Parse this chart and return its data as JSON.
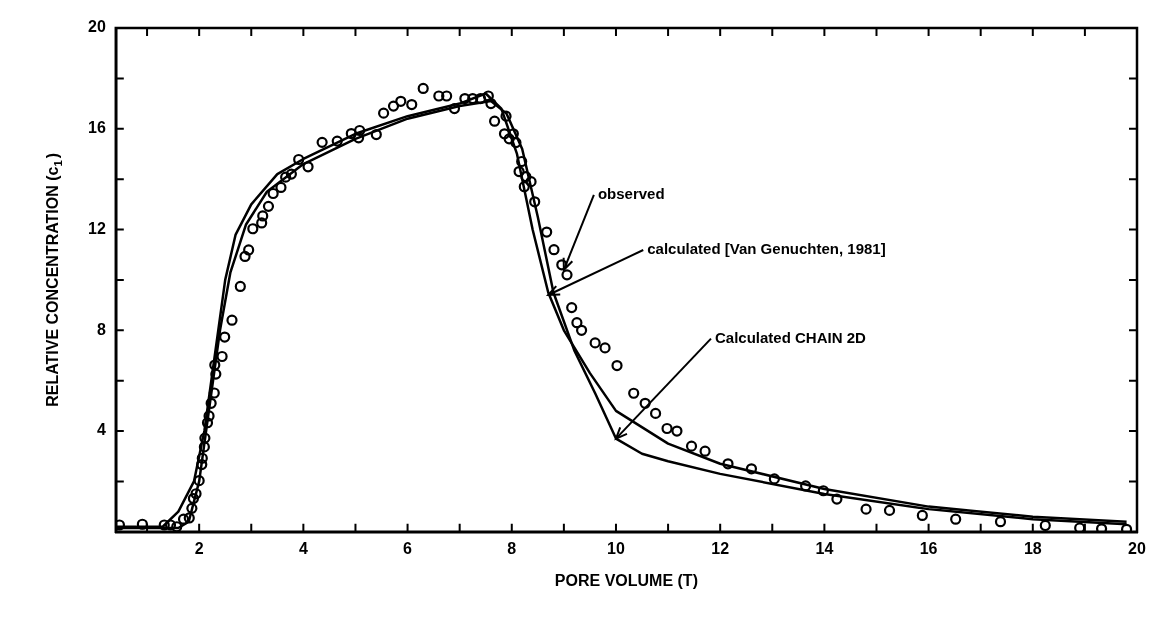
{
  "chart_data": {
    "type": "line",
    "xlabel": "PORE VOLUME (T)",
    "ylabel": "RELATIVE CONCENTRATION (c$_{1}$)",
    "xlim": [
      0.4,
      20
    ],
    "ylim": [
      0,
      20
    ],
    "xticks": [
      {
        "value": 1,
        "label": null
      },
      2,
      {
        "value": 3,
        "label": null
      },
      4,
      {
        "value": 5,
        "label": null
      },
      6,
      {
        "value": 7,
        "label": null
      },
      8,
      {
        "value": 9,
        "label": null
      },
      10,
      {
        "value": 11,
        "label": null
      },
      12,
      {
        "value": 13,
        "label": null
      },
      14,
      {
        "value": 15,
        "label": null
      },
      16,
      {
        "value": 17,
        "label": null
      },
      18,
      {
        "value": 19,
        "label": null
      },
      20
    ],
    "yticks": [
      {
        "value": 2,
        "label": null
      },
      4,
      {
        "value": 6,
        "label": null
      },
      8,
      {
        "value": 10,
        "label": null
      },
      12,
      {
        "value": 14,
        "label": null
      },
      16,
      {
        "value": 18,
        "label": null
      },
      20
    ],
    "grid": false,
    "legend": false,
    "annotations": [
      {
        "text": "observed",
        "x": 9.0,
        "y": 10.4
      },
      {
        "text": "calculated [Van Genuchten, 1981]",
        "x": 8.7,
        "y": 9.4
      },
      {
        "text": "Calculated CHAIN 2D",
        "x": 10.0,
        "y": 3.7
      }
    ],
    "series": [
      {
        "type": "scatter",
        "marker": "circle",
        "color": "#000000",
        "x": [
          0.47,
          0.91,
          1.33,
          1.45,
          1.57,
          1.7,
          1.81,
          1.86,
          1.89,
          1.94,
          2.0,
          2.05,
          2.06,
          2.1,
          2.11,
          2.16,
          2.19,
          2.23,
          2.29,
          2.32,
          2.3,
          2.44,
          2.49,
          2.63,
          2.79,
          2.88,
          2.95,
          3.03,
          3.2,
          3.22,
          3.33,
          3.42,
          3.57,
          3.66,
          3.77,
          3.91,
          4.09,
          4.36,
          4.65,
          4.92,
          5.06,
          5.08,
          5.4,
          5.54,
          5.73,
          5.87,
          6.08,
          6.3,
          6.6,
          6.75,
          6.9,
          7.1,
          7.25,
          7.4,
          7.55,
          7.6,
          7.67,
          7.89,
          7.86,
          7.95,
          8.08,
          8.03,
          8.19,
          8.14,
          8.27,
          8.24,
          8.37,
          8.44,
          8.67,
          8.81,
          8.96,
          9.06,
          9.15,
          9.25,
          9.34,
          9.6,
          9.79,
          10.02,
          10.34,
          10.56,
          10.76,
          10.98,
          11.17,
          11.45,
          11.71,
          12.15,
          12.6,
          13.04,
          13.64,
          13.98,
          14.24,
          14.8,
          15.25,
          15.88,
          16.52,
          17.38,
          18.24,
          18.9,
          19.32,
          19.8
        ],
        "values": [
          0.27,
          0.3,
          0.27,
          0.27,
          0.2,
          0.5,
          0.55,
          0.93,
          1.32,
          1.51,
          2.03,
          2.67,
          2.92,
          3.37,
          3.72,
          4.33,
          4.6,
          5.1,
          5.51,
          6.26,
          6.62,
          6.96,
          7.73,
          8.4,
          9.74,
          10.93,
          11.19,
          12.03,
          12.26,
          12.54,
          12.92,
          13.43,
          13.67,
          14.08,
          14.2,
          14.78,
          14.49,
          15.46,
          15.51,
          15.81,
          15.64,
          15.93,
          15.77,
          16.62,
          16.9,
          17.09,
          16.96,
          17.6,
          17.3,
          17.3,
          16.8,
          17.2,
          17.2,
          17.2,
          17.3,
          17.0,
          16.3,
          16.5,
          15.8,
          15.6,
          15.45,
          15.8,
          14.7,
          14.3,
          14.1,
          13.7,
          13.9,
          13.1,
          11.9,
          11.2,
          10.6,
          10.2,
          8.9,
          8.3,
          8.0,
          7.5,
          7.3,
          6.6,
          5.5,
          5.1,
          4.7,
          4.1,
          4.0,
          3.4,
          3.2,
          2.7,
          2.5,
          2.1,
          1.82,
          1.63,
          1.3,
          0.9,
          0.85,
          0.65,
          0.5,
          0.4,
          0.25,
          0.15,
          0.12,
          0.1
        ]
      },
      {
        "type": "line",
        "color": "#000000",
        "x": [
          0.4,
          1.3,
          1.6,
          1.9,
          2.1,
          2.3,
          2.5,
          2.7,
          3.0,
          3.5,
          4.0,
          5.0,
          6.0,
          7.0,
          7.5,
          7.8,
          8.1,
          8.4,
          8.7,
          9.0,
          9.5,
          10.0,
          11.0,
          12.0,
          14.0,
          16.0,
          18.0,
          19.8
        ],
        "values": [
          0.2,
          0.2,
          0.8,
          2.0,
          4.0,
          7.0,
          10.0,
          11.8,
          13.0,
          14.2,
          14.8,
          15.8,
          16.5,
          17.0,
          17.4,
          16.8,
          15.0,
          12.0,
          9.5,
          8.0,
          6.3,
          4.8,
          3.5,
          2.7,
          1.7,
          1.0,
          0.6,
          0.4
        ]
      },
      {
        "type": "line",
        "color": "#000000",
        "x": [
          0.4,
          1.6,
          1.8,
          2.0,
          2.2,
          2.4,
          2.6,
          2.9,
          3.3,
          4.0,
          5.0,
          6.0,
          7.0,
          7.6,
          7.9,
          8.2,
          8.5,
          8.8,
          9.2,
          9.6,
          10.0,
          10.5,
          11.0,
          12.0,
          14.0,
          16.0,
          18.0,
          19.8
        ],
        "values": [
          0.15,
          0.15,
          0.4,
          2.0,
          5.0,
          8.0,
          10.3,
          12.2,
          13.5,
          14.6,
          15.6,
          16.4,
          16.9,
          17.1,
          16.6,
          15.2,
          12.5,
          9.5,
          7.2,
          5.5,
          3.7,
          3.1,
          2.8,
          2.3,
          1.5,
          0.9,
          0.5,
          0.3
        ]
      }
    ]
  }
}
